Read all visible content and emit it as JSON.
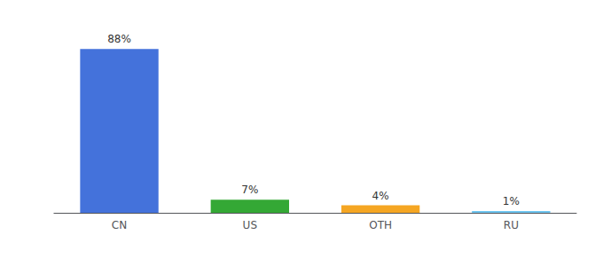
{
  "chart_data": {
    "type": "bar",
    "categories": [
      "CN",
      "US",
      "OTH",
      "RU"
    ],
    "values": [
      88,
      7,
      4,
      1
    ],
    "value_labels": [
      "88%",
      "7%",
      "4%",
      "1%"
    ],
    "colors": [
      "#4472db",
      "#34a835",
      "#f5a623",
      "#6ec6f0"
    ],
    "ylim": [
      0,
      100
    ],
    "grid": false,
    "data_labels": true,
    "tick_labels": "x"
  }
}
